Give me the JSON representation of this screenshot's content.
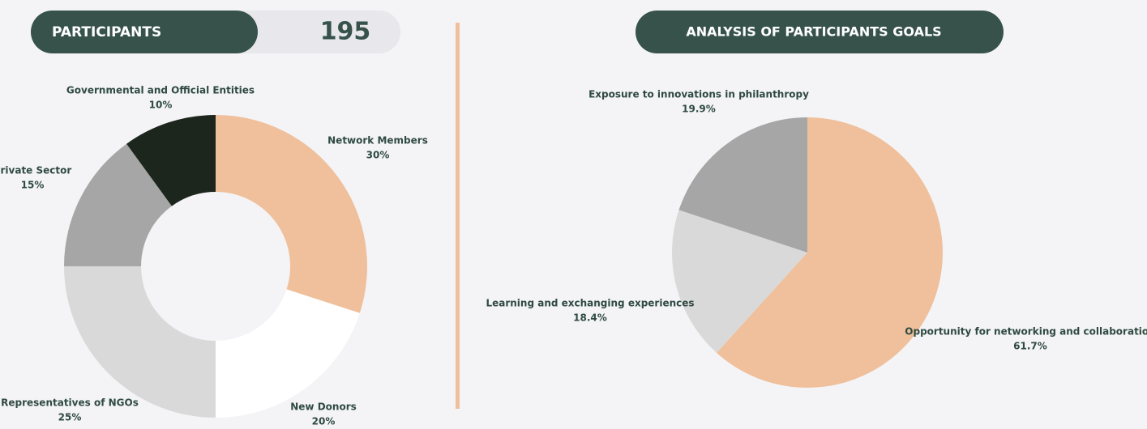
{
  "header": {
    "label": "PARTICIPANTS",
    "count": 195
  },
  "chart_data": [
    {
      "type": "donut",
      "categories": [
        "Network Members",
        "New Donors",
        "Representatives of NGOs",
        "Private Sector",
        "Governmental and Official Entities"
      ],
      "values": [
        30,
        20,
        25,
        15,
        10
      ],
      "value_labels": [
        "30%",
        "20%",
        "25%",
        "15%",
        "10%"
      ],
      "colors": [
        "#efc09b",
        "#ffffff",
        "#d9d9d9",
        "#a6a6a6",
        "#1c261c"
      ]
    },
    {
      "type": "pie",
      "title": "ANALYSIS OF PARTICIPANTS GOALS",
      "categories": [
        "Opportunity for networking and collaboration",
        "Learning and exchanging experiences",
        "Exposure to innovations in philanthropy"
      ],
      "values": [
        61.7,
        18.4,
        19.9
      ],
      "value_labels": [
        "61.7%",
        "18.4%",
        "19.9%"
      ],
      "colors": [
        "#efc09b",
        "#d9d9d9",
        "#a6a6a6"
      ]
    }
  ]
}
